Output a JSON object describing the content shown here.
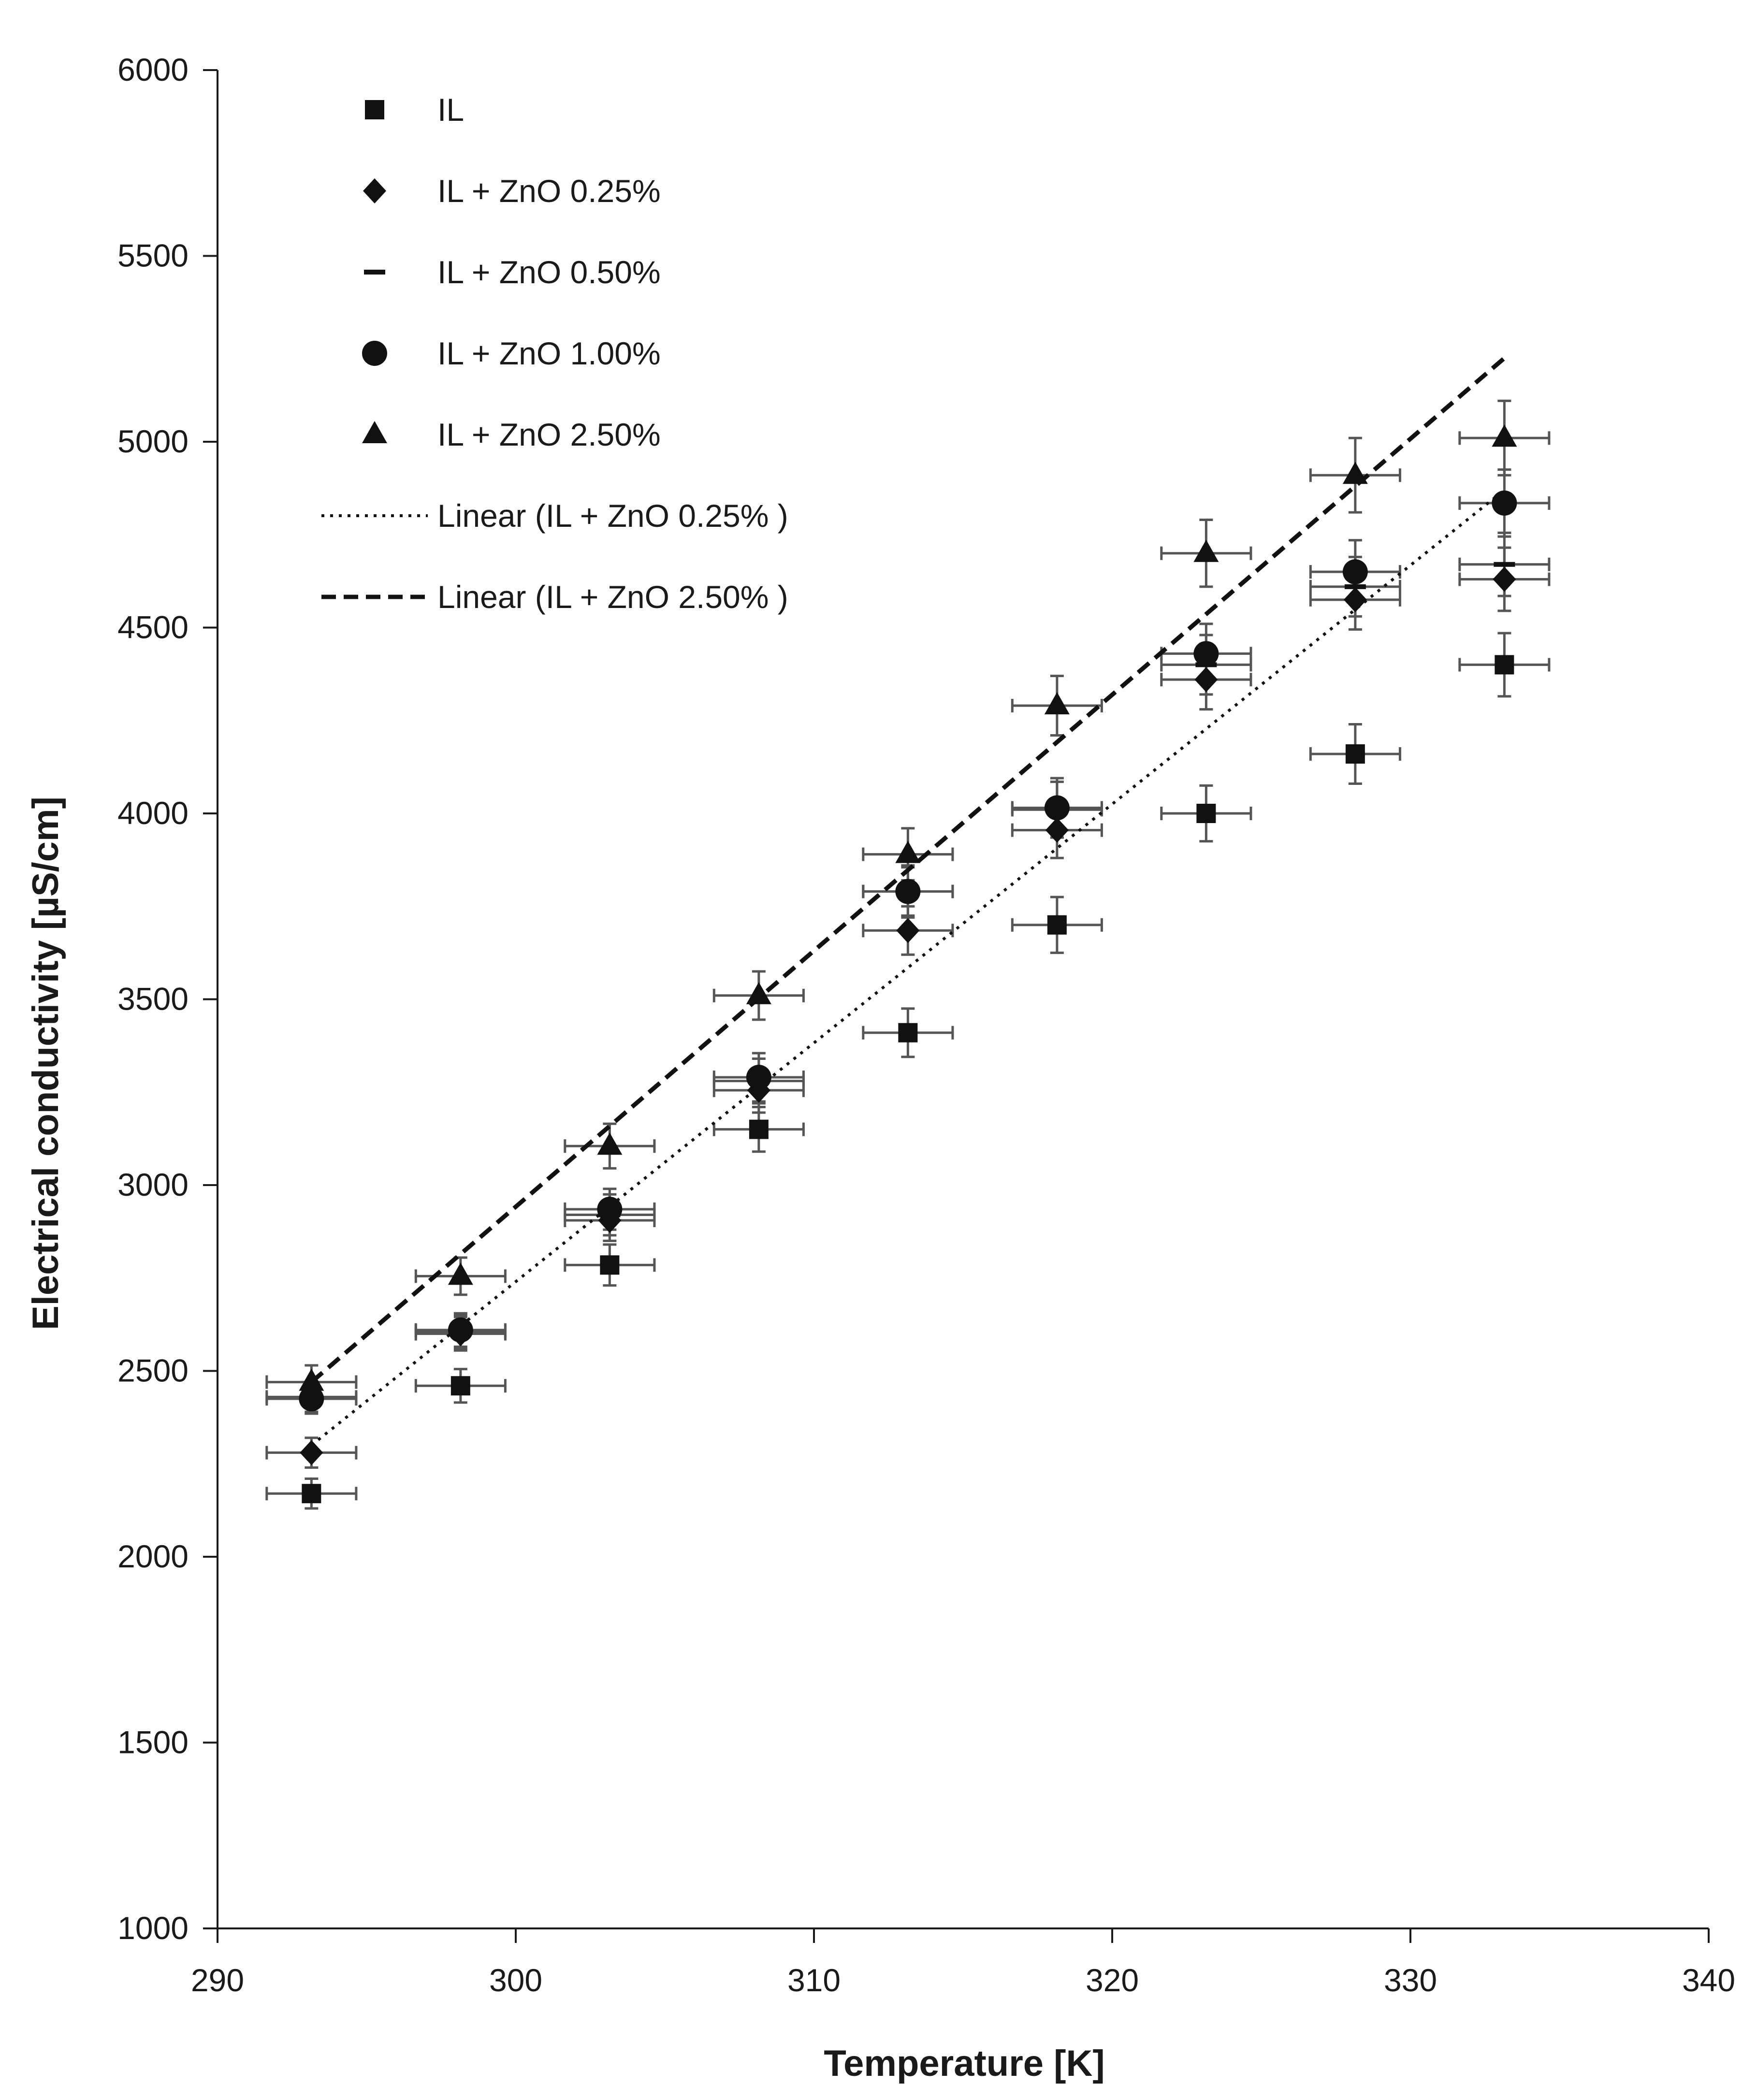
{
  "chart_data": {
    "type": "scatter",
    "xlabel": "Temperature [K]",
    "ylabel": "Electrical conductivity [µS/cm]",
    "xlim": [
      290,
      340
    ],
    "ylim": [
      1000,
      6000
    ],
    "xticks": [
      "290",
      "300",
      "310",
      "320",
      "330",
      "340"
    ],
    "yticks": [
      "1000",
      "1500",
      "2000",
      "2500",
      "3000",
      "3500",
      "4000",
      "4500",
      "5000",
      "5500",
      "6000"
    ],
    "grid": false,
    "legend_position": "top-left",
    "x_error": 1.5,
    "series": [
      {
        "name": "IL",
        "marker": "square",
        "x": [
          293.15,
          298.15,
          303.15,
          308.15,
          313.15,
          318.15,
          323.15,
          328.15,
          333.15
        ],
        "y": [
          2170,
          2460,
          2785,
          3150,
          3410,
          3700,
          4000,
          4160,
          4400
        ],
        "y_error": [
          40,
          45,
          55,
          60,
          65,
          75,
          75,
          80,
          85
        ]
      },
      {
        "name": "IL + ZnO 0.25%",
        "marker": "diamond",
        "x": [
          293.15,
          298.15,
          303.15,
          308.15,
          313.15,
          318.15,
          323.15,
          328.15,
          333.15
        ],
        "y": [
          2280,
          2600,
          2905,
          3255,
          3685,
          3955,
          4360,
          4575,
          4630
        ],
        "y_error": [
          40,
          45,
          55,
          60,
          65,
          75,
          80,
          80,
          85
        ]
      },
      {
        "name": "IL + ZnO 0.50%",
        "marker": "dash",
        "x": [
          293.15,
          298.15,
          303.15,
          308.15,
          313.15,
          318.15,
          323.15,
          328.15,
          333.15
        ],
        "y": [
          2430,
          2605,
          2920,
          3280,
          3790,
          4010,
          4400,
          4610,
          4670
        ],
        "y_error": [
          40,
          45,
          55,
          60,
          65,
          75,
          80,
          80,
          85
        ]
      },
      {
        "name": "IL + ZnO 1.00%",
        "marker": "circle",
        "x": [
          293.15,
          298.15,
          303.15,
          308.15,
          313.15,
          318.15,
          323.15,
          328.15,
          333.15
        ],
        "y": [
          2425,
          2610,
          2935,
          3290,
          3790,
          4015,
          4430,
          4650,
          4835
        ],
        "y_error": [
          40,
          45,
          55,
          65,
          70,
          80,
          80,
          85,
          90
        ]
      },
      {
        "name": "IL + ZnO 2.50%",
        "marker": "triangle",
        "x": [
          293.15,
          298.15,
          303.15,
          308.15,
          313.15,
          318.15,
          323.15,
          328.15,
          333.15
        ],
        "y": [
          2470,
          2755,
          3105,
          3510,
          3890,
          4290,
          4700,
          4910,
          5010
        ],
        "y_error": [
          45,
          50,
          60,
          65,
          70,
          80,
          90,
          100,
          100
        ]
      }
    ],
    "trendlines": [
      {
        "name": "Linear (IL + ZnO 0.25% )",
        "style": "dotted",
        "x": [
          293.15,
          333.15
        ],
        "y": [
          2300,
          4870
        ]
      },
      {
        "name": "Linear (IL + ZnO 2.50% )",
        "style": "dashed",
        "x": [
          293.15,
          333.15
        ],
        "y": [
          2470,
          5225
        ]
      }
    ]
  }
}
